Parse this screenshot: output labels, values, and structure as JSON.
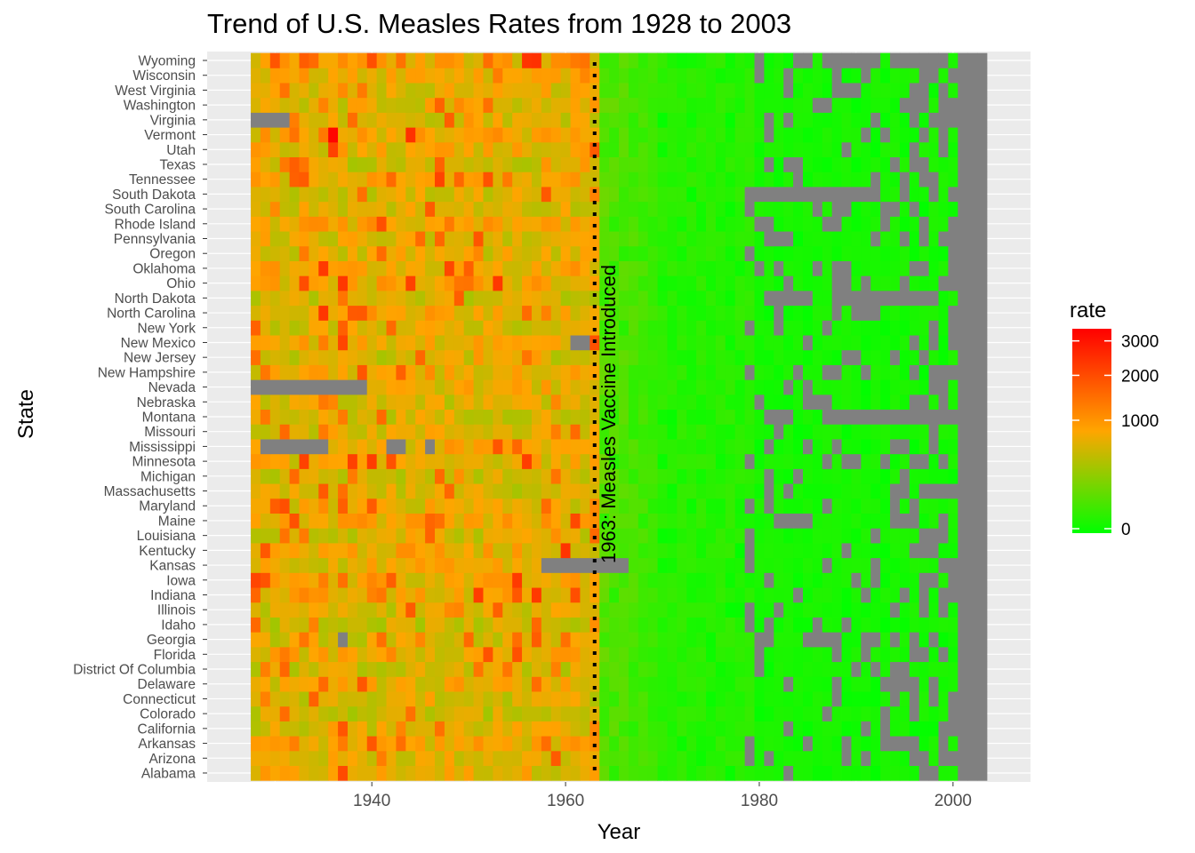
{
  "chart_data": {
    "type": "heatmap",
    "title": "Trend of U.S. Measles Rates from 1928 to 2003",
    "xlabel": "Year",
    "ylabel": "State",
    "xlim": [
      1923,
      2008
    ],
    "x_ticks": [
      1940,
      1960,
      1980,
      2000
    ],
    "x_tick_labels": [
      "1940",
      "1960",
      "1980",
      "2000"
    ],
    "years": [
      1928,
      2003
    ],
    "states": [
      "Alabama",
      "Arizona",
      "Arkansas",
      "California",
      "Colorado",
      "Connecticut",
      "Delaware",
      "District Of Columbia",
      "Florida",
      "Georgia",
      "Idaho",
      "Illinois",
      "Indiana",
      "Iowa",
      "Kansas",
      "Kentucky",
      "Louisiana",
      "Maine",
      "Maryland",
      "Massachusetts",
      "Michigan",
      "Minnesota",
      "Mississippi",
      "Missouri",
      "Montana",
      "Nebraska",
      "Nevada",
      "New Hampshire",
      "New Jersey",
      "New Mexico",
      "New York",
      "North Carolina",
      "North Dakota",
      "Ohio",
      "Oklahoma",
      "Oregon",
      "Pennsylvania",
      "Rhode Island",
      "South Carolina",
      "South Dakota",
      "Tennessee",
      "Texas",
      "Utah",
      "Vermont",
      "Virginia",
      "Washington",
      "West Virginia",
      "Wisconsin",
      "Wyoming"
    ],
    "grid": true,
    "legend": {
      "title": "rate",
      "position": "right",
      "scale": "sqrt",
      "breaks": [
        0,
        1000,
        2000,
        3000
      ],
      "break_labels": [
        "0",
        "1000",
        "2000",
        "3000"
      ],
      "max": 3400,
      "colors": [
        "#00ff00",
        "#ffa500",
        "#ff0000"
      ],
      "na_color": "#808080"
    },
    "annotation": {
      "x": 1963,
      "label": "1963: Measles Vaccine Introduced",
      "line_style": "dotted"
    },
    "missing_blocks": [
      {
        "state": "Virginia",
        "from": 1928,
        "to": 1931
      },
      {
        "state": "Nevada",
        "from": 1928,
        "to": 1939
      },
      {
        "state": "Mississippi",
        "from": 1929,
        "to": 1935
      },
      {
        "state": "Mississippi",
        "from": 1942,
        "to": 1943
      },
      {
        "state": "Mississippi",
        "from": 1946,
        "to": 1946
      },
      {
        "state": "Kansas",
        "from": 1958,
        "to": 1966
      },
      {
        "state": "New Mexico",
        "from": 1961,
        "to": 1962
      },
      {
        "state": "Georgia",
        "from": 1937,
        "to": 1937
      },
      {
        "state": "South Dakota",
        "from": 1980,
        "to": 1991
      },
      {
        "state": "North Dakota",
        "from": 1981,
        "to": 1984
      },
      {
        "state": "North Dakota",
        "from": 1988,
        "to": 1997
      },
      {
        "state": "Montana",
        "from": 1981,
        "to": 1983
      },
      {
        "state": "Montana",
        "from": 1988,
        "to": 2003
      },
      {
        "state": "Maine",
        "from": 1982,
        "to": 1985
      },
      {
        "state": "Wyoming",
        "from": 1984,
        "to": 1985
      },
      {
        "state": "Wyoming",
        "from": 1988,
        "to": 1992
      },
      {
        "state": "Wyoming",
        "from": 1994,
        "to": 1996
      }
    ],
    "highlights": [
      {
        "state": "Vermont",
        "year": 1936,
        "rate": 3300
      }
    ]
  }
}
